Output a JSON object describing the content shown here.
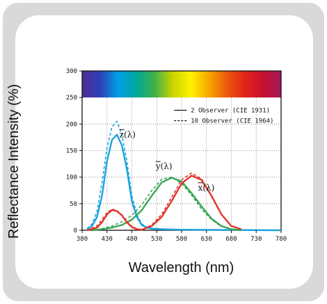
{
  "chart_data": {
    "type": "line",
    "xlabel": "Wavelength (nm)",
    "ylabel": "Reflectance Intensity (%)",
    "xlim": [
      380,
      780
    ],
    "ylim": [
      0,
      300
    ],
    "x_ticks": [
      "380",
      "430",
      "480",
      "530",
      "580",
      "630",
      "680",
      "730",
      "780"
    ],
    "y_ticks": [
      "0",
      "50",
      "100",
      "150",
      "200",
      "250",
      "300"
    ],
    "grid": true,
    "spectrum_band": {
      "range": [
        250,
        300
      ],
      "colors": [
        "#4b2f8f",
        "#2f3fb8",
        "#00a0e8",
        "#00a89a",
        "#3fb04a",
        "#c8d400",
        "#fff200",
        "#f7a600",
        "#ea5b0c",
        "#e2231a",
        "#c8102e",
        "#a3195b"
      ]
    },
    "legend": {
      "position": "top-right",
      "entries": [
        {
          "label": "2  Observer (CIE 1931)",
          "style": "solid"
        },
        {
          "label": "10  Observer (CIE 1964)",
          "style": "dashed"
        }
      ]
    },
    "curve_labels": [
      {
        "label": "z(λ)",
        "x": 455,
        "y": 175
      },
      {
        "label": "y(λ)",
        "x": 528,
        "y": 115
      },
      {
        "label": "x(λ)",
        "x": 613,
        "y": 75
      }
    ],
    "series": [
      {
        "name": "z(λ)",
        "observer": "2",
        "color": "#1aa3e0",
        "dashed": false,
        "x": [
          390,
          400,
          410,
          420,
          430,
          440,
          450,
          460,
          470,
          480,
          490,
          500,
          510,
          520,
          540,
          580,
          780
        ],
        "y": [
          2,
          8,
          25,
          65,
          130,
          170,
          180,
          160,
          115,
          55,
          25,
          10,
          5,
          3,
          2,
          1,
          0
        ]
      },
      {
        "name": "z(λ)",
        "observer": "10",
        "color": "#1aa3e0",
        "dashed": true,
        "x": [
          390,
          400,
          410,
          420,
          430,
          440,
          450,
          460,
          470,
          480,
          490,
          500,
          510,
          520,
          540,
          580,
          780
        ],
        "y": [
          3,
          12,
          35,
          90,
          155,
          195,
          205,
          180,
          130,
          65,
          30,
          12,
          6,
          4,
          2,
          1,
          0
        ]
      },
      {
        "name": "y(λ)",
        "observer": "2",
        "color": "#3aa655",
        "dashed": false,
        "x": [
          400,
          420,
          440,
          460,
          480,
          500,
          520,
          540,
          560,
          580,
          600,
          620,
          640,
          660,
          680,
          700
        ],
        "y": [
          0,
          2,
          5,
          10,
          20,
          38,
          65,
          90,
          99,
          92,
          70,
          45,
          22,
          8,
          2,
          0
        ]
      },
      {
        "name": "y(λ)",
        "observer": "10",
        "color": "#3aa655",
        "dashed": true,
        "x": [
          400,
          420,
          440,
          460,
          480,
          500,
          520,
          540,
          560,
          580,
          600,
          620,
          640,
          660,
          680,
          700
        ],
        "y": [
          0,
          3,
          8,
          16,
          28,
          48,
          75,
          96,
          100,
          88,
          66,
          40,
          20,
          7,
          2,
          0
        ]
      },
      {
        "name": "x(λ)",
        "observer": "2",
        "color": "#e2342b",
        "dashed": false,
        "x": [
          390,
          410,
          420,
          430,
          440,
          450,
          460,
          470,
          480,
          490,
          500,
          520,
          540,
          560,
          580,
          600,
          620,
          640,
          660,
          680,
          700
        ],
        "y": [
          0,
          5,
          15,
          30,
          38,
          36,
          28,
          15,
          6,
          2,
          1,
          8,
          25,
          55,
          88,
          103,
          95,
          65,
          30,
          8,
          2
        ]
      },
      {
        "name": "x(λ)",
        "observer": "10",
        "color": "#e2342b",
        "dashed": true,
        "x": [
          390,
          410,
          420,
          430,
          440,
          450,
          460,
          470,
          480,
          490,
          500,
          520,
          540,
          560,
          580,
          600,
          620,
          640,
          660,
          680,
          700
        ],
        "y": [
          0,
          8,
          20,
          33,
          40,
          37,
          29,
          17,
          7,
          3,
          1,
          10,
          30,
          62,
          95,
          108,
          97,
          66,
          30,
          8,
          2
        ]
      }
    ]
  }
}
